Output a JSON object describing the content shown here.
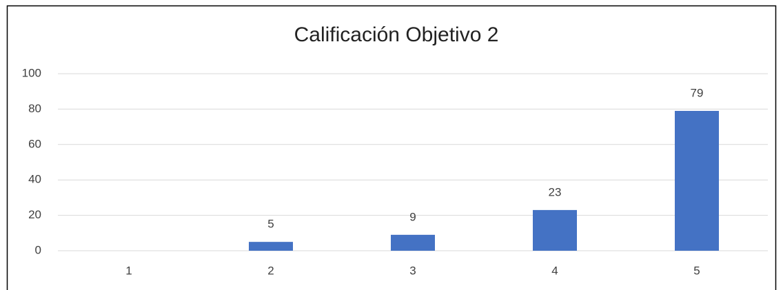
{
  "chart_data": {
    "type": "bar",
    "title": "Calificación Objetivo 2",
    "categories": [
      "1",
      "2",
      "3",
      "4",
      "5"
    ],
    "values": [
      null,
      5,
      9,
      23,
      79
    ],
    "color": "#4472c4",
    "ylim": [
      0,
      100
    ],
    "yticks": [
      0,
      20,
      40,
      60,
      80,
      100
    ],
    "grid": true
  }
}
